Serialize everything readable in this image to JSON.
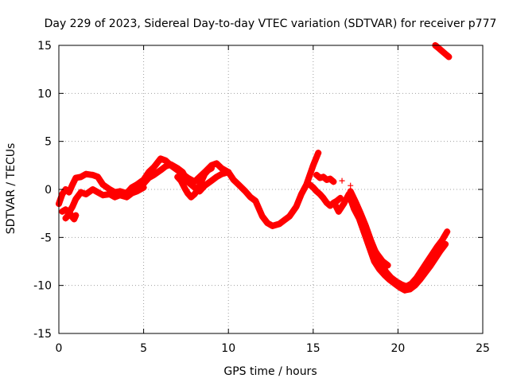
{
  "chart_data": {
    "type": "scatter",
    "title": "Day 229 of 2023, Sidereal Day-to-day VTEC variation (SDTVAR) for receiver p777",
    "xlabel": "GPS time / hours",
    "ylabel": "SDTVAR / TECUs",
    "xlim": [
      0,
      25
    ],
    "ylim": [
      -15,
      15
    ],
    "xticks": [
      0,
      5,
      10,
      15,
      20,
      25
    ],
    "yticks": [
      -15,
      -10,
      -5,
      0,
      5,
      10,
      15
    ],
    "grid": true,
    "marker": "+",
    "series": [
      {
        "name": "SDTVAR",
        "color": "#ff0000",
        "tracks": [
          {
            "x": [
              0.0,
              0.2,
              0.4,
              0.6,
              0.8,
              1.0,
              1.3,
              1.6,
              2.0,
              2.3,
              2.6,
              3.0,
              3.3,
              3.6,
              4.0,
              4.3,
              4.6,
              5.0,
              5.3,
              5.6,
              6.0,
              6.3,
              6.6,
              7.0,
              7.3,
              7.6,
              8.0,
              8.3,
              8.6,
              9.0,
              9.3,
              9.6,
              10.0,
              10.3,
              10.6,
              11.0,
              11.3,
              11.6,
              12.0,
              12.3,
              12.6,
              13.0,
              13.3,
              13.6,
              14.0,
              14.3,
              14.6,
              15.0,
              15.3
            ],
            "y": [
              -1.5,
              -0.5,
              0.0,
              -0.3,
              0.5,
              1.2,
              1.3,
              1.6,
              1.5,
              1.3,
              0.5,
              0.0,
              -0.3,
              -0.2,
              -0.4,
              0.2,
              0.5,
              1.0,
              1.8,
              2.3,
              3.2,
              3.0,
              2.5,
              2.0,
              1.6,
              1.2,
              0.8,
              1.3,
              1.8,
              2.5,
              2.7,
              2.2,
              1.8,
              1.0,
              0.5,
              -0.2,
              -0.8,
              -1.2,
              -2.8,
              -3.5,
              -3.8,
              -3.6,
              -3.2,
              -2.8,
              -1.8,
              -0.5,
              0.5,
              2.5,
              3.8
            ]
          },
          {
            "x": [
              0.2,
              0.4,
              0.6,
              0.8,
              1.0,
              1.3,
              1.6,
              2.0,
              2.3,
              2.6,
              3.0,
              3.3,
              3.6,
              4.0,
              4.3,
              4.6,
              5.0
            ],
            "y": [
              -2.3,
              -2.1,
              -2.4,
              -1.8,
              -1.0,
              -0.3,
              -0.5,
              0.0,
              -0.3,
              -0.6,
              -0.5,
              -0.8,
              -0.6,
              -0.8,
              -0.4,
              -0.2,
              0.2
            ]
          },
          {
            "x": [
              0.4,
              0.5,
              0.6,
              0.7,
              0.8,
              0.9,
              1.0
            ],
            "y": [
              -3.0,
              -2.8,
              -2.5,
              -2.6,
              -2.9,
              -3.1,
              -2.7
            ]
          },
          {
            "x": [
              5.0,
              5.3,
              5.6,
              6.0,
              6.3,
              6.6,
              7.0,
              7.3,
              7.6,
              8.0,
              8.3,
              8.6,
              9.0,
              9.3,
              9.6,
              10.0
            ],
            "y": [
              0.6,
              1.2,
              1.5,
              2.0,
              2.4,
              2.6,
              2.2,
              1.8,
              0.8,
              0.2,
              -0.2,
              0.4,
              0.9,
              1.3,
              1.6,
              1.8
            ]
          },
          {
            "x": [
              7.0,
              7.2,
              7.4,
              7.6,
              7.8,
              8.0,
              8.2,
              8.4,
              8.6,
              8.8,
              9.0
            ],
            "y": [
              1.3,
              0.9,
              0.2,
              -0.4,
              -0.8,
              -0.5,
              0.0,
              0.8,
              1.6,
              2.0,
              2.2
            ]
          },
          {
            "x": [
              14.8,
              15.0,
              15.2,
              15.4,
              15.6,
              15.8,
              16.0,
              16.2,
              16.4,
              16.6
            ],
            "y": [
              0.5,
              0.2,
              -0.2,
              -0.5,
              -0.9,
              -1.4,
              -1.7,
              -1.4,
              -1.2,
              -0.9
            ]
          },
          {
            "x": [
              15.2,
              15.4,
              15.6,
              15.8,
              16.0,
              16.2
            ],
            "y": [
              1.5,
              1.2,
              1.3,
              1.0,
              1.1,
              0.8
            ]
          },
          {
            "x": [
              16.3,
              16.5,
              16.8,
              17.1,
              17.4,
              17.7,
              18.0,
              18.3,
              18.6,
              18.9,
              19.2,
              19.5,
              19.8,
              20.1,
              20.4,
              20.7,
              21.0,
              21.3,
              21.6,
              21.9,
              22.2,
              22.5,
              22.8
            ],
            "y": [
              -1.6,
              -2.3,
              -1.5,
              -0.5,
              -2.0,
              -3.0,
              -4.5,
              -6.0,
              -7.5,
              -8.3,
              -8.9,
              -9.4,
              -9.8,
              -10.2,
              -10.5,
              -10.4,
              -10.0,
              -9.4,
              -8.7,
              -8.0,
              -7.2,
              -6.4,
              -5.7
            ]
          },
          {
            "x": [
              17.2,
              17.5,
              17.8,
              18.1,
              18.4,
              18.7,
              19.0,
              19.3,
              19.6,
              19.9,
              20.2,
              20.5,
              20.8,
              21.1,
              21.4,
              21.7,
              22.0,
              22.3,
              22.6,
              22.9
            ],
            "y": [
              -0.2,
              -1.3,
              -2.5,
              -3.8,
              -5.3,
              -6.6,
              -7.7,
              -8.6,
              -9.2,
              -9.6,
              -9.9,
              -10.1,
              -9.8,
              -9.2,
              -8.4,
              -7.6,
              -6.8,
              -6.0,
              -5.3,
              -4.4
            ]
          },
          {
            "x": [
              18.2,
              18.5,
              18.8,
              19.1,
              19.4
            ],
            "y": [
              -5.3,
              -6.0,
              -6.8,
              -7.5,
              -7.9
            ]
          },
          {
            "x": [
              22.2,
              22.4,
              22.6,
              22.8,
              23.0
            ],
            "y": [
              15.0,
              14.7,
              14.4,
              14.1,
              13.8
            ]
          }
        ],
        "isolated": [
          {
            "x": 16.7,
            "y": 0.9
          },
          {
            "x": 17.2,
            "y": 0.4
          }
        ]
      }
    ]
  }
}
